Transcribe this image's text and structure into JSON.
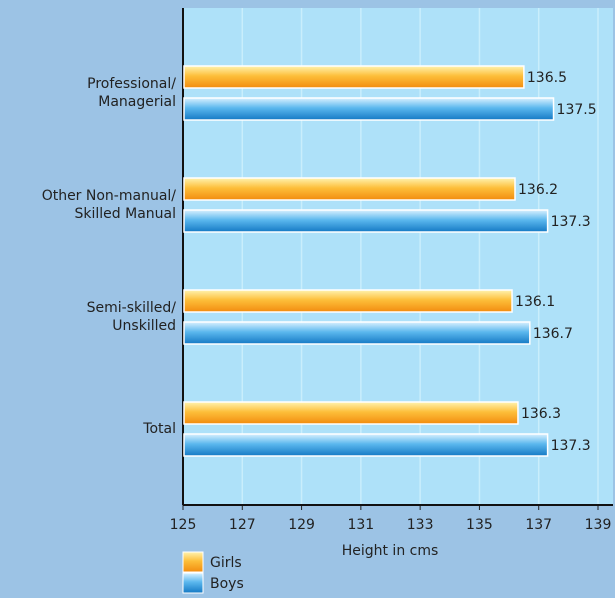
{
  "chart_data": {
    "type": "hbar",
    "xlabel": "Height in cms",
    "categories": [
      "Professional/\nManagerial",
      "Other Non-manual/\nSkilled Manual",
      "Semi-skilled/\nUnskilled",
      "Total"
    ],
    "series": [
      {
        "name": "Girls",
        "color": "#f7a21b",
        "values": [
          136.5,
          136.2,
          136.1,
          136.3
        ]
      },
      {
        "name": "Boys",
        "color": "#1e90d6",
        "values": [
          137.5,
          137.3,
          136.7,
          137.3
        ]
      }
    ],
    "xlim": [
      125,
      139
    ],
    "xticks": [
      125,
      127,
      129,
      131,
      133,
      135,
      137,
      139
    ],
    "grid": true
  }
}
